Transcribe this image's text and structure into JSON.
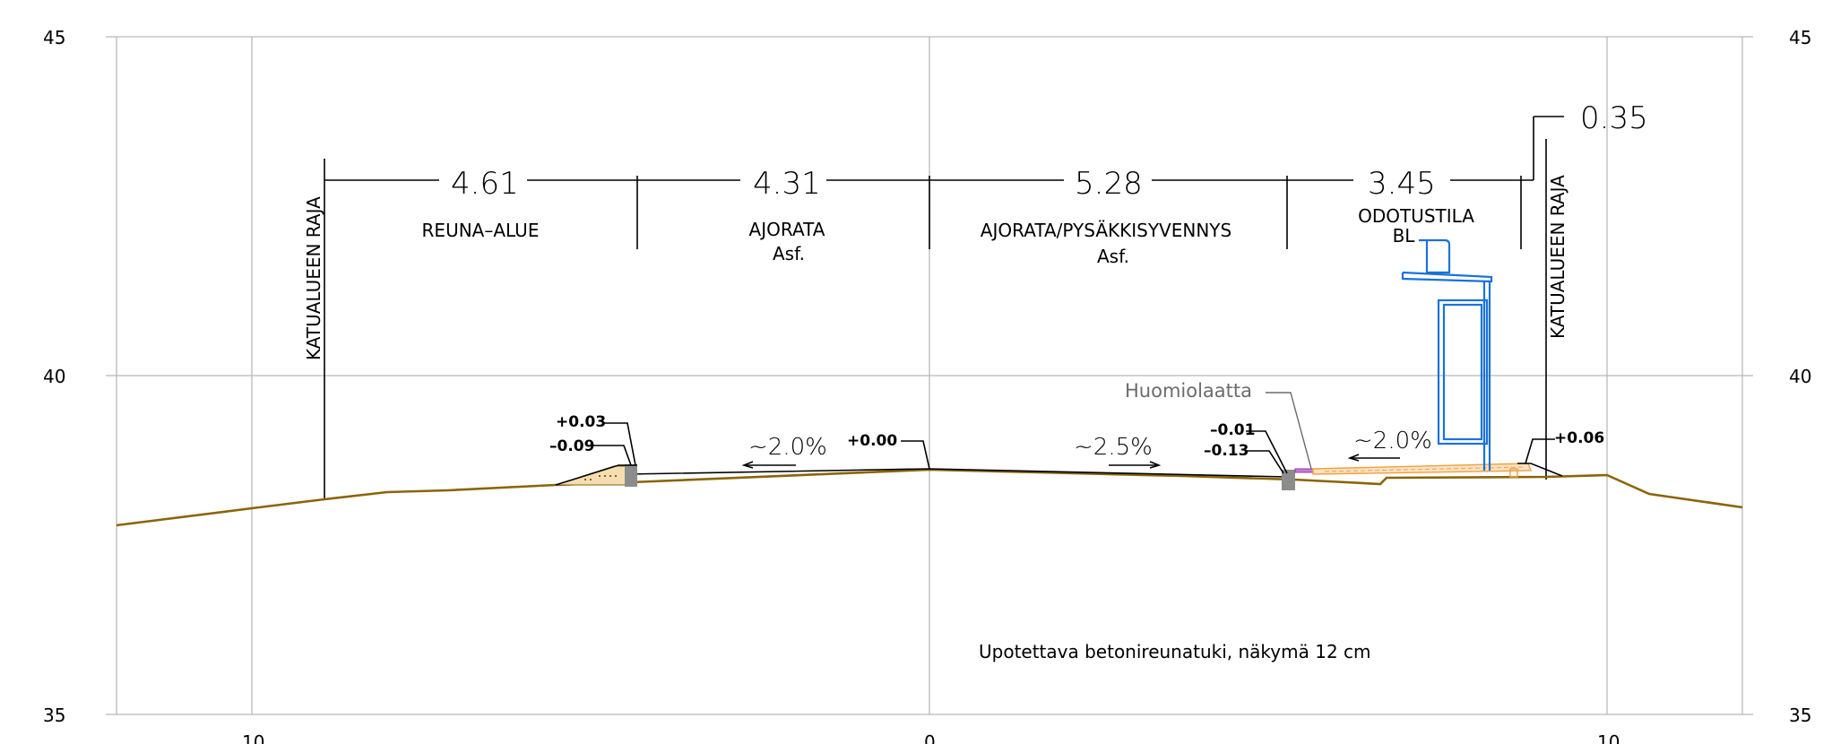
{
  "axes": {
    "y_labels": [
      "45",
      "40",
      "35"
    ],
    "x_labels": [
      "10",
      "0",
      "10"
    ]
  },
  "dimensions": {
    "widths": [
      "4.61",
      "4.31",
      "5.28",
      "3.45"
    ],
    "extra": "0.35"
  },
  "areas": {
    "reuna": "REUNA–ALUE",
    "ajorata": "AJORATA",
    "ajorata_surface": "Asf.",
    "pysakki": "AJORATA/PYSÄKKISYVENNYS",
    "pysakki_surface": "Asf.",
    "odotus": "ODOTUSTILA",
    "odotus_surface": "BL"
  },
  "boundary_label": "KATUALUEEN RAJA",
  "elevations": {
    "left_top": "+0.03",
    "left_bottom": "–0.09",
    "centre": "+0.00",
    "right_top": "–0.01",
    "right_bottom": "–0.13",
    "far_right": "+0.06"
  },
  "slopes": [
    "~2.0%",
    "~2.5%",
    "~2.0%"
  ],
  "notes": {
    "tactile": "Huomiolaatta",
    "curb": "Upotettava betonireunatuki, näkymä 12 cm"
  },
  "colors": {
    "ground": "#8a6408",
    "shelter": "#1a73d9",
    "grid": "#b9b9b9",
    "tactile": "#c77dd6",
    "paving": "#f0a040"
  }
}
